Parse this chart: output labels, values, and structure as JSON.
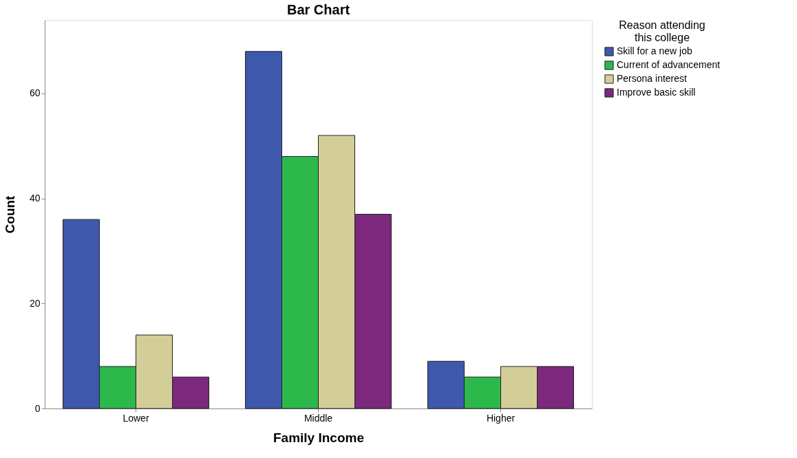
{
  "chart_data": {
    "type": "bar",
    "title": "Bar Chart",
    "xlabel": "Family Income",
    "ylabel": "Count",
    "legend_title": "Reason attending this college",
    "categories": [
      "Lower",
      "Middle",
      "Higher"
    ],
    "series": [
      {
        "name": "Skill for a new job",
        "color": "#3e58ac",
        "values": [
          36,
          68,
          9
        ]
      },
      {
        "name": "Current of advancement",
        "color": "#2db84b",
        "values": [
          8,
          48,
          6
        ]
      },
      {
        "name": "Persona interest",
        "color": "#d3ce97",
        "values": [
          14,
          52,
          8
        ]
      },
      {
        "name": "Improve basic skill",
        "color": "#7b287d",
        "values": [
          6,
          37,
          8
        ]
      }
    ],
    "ylim": [
      0,
      74
    ],
    "yticks": [
      0,
      20,
      40,
      60
    ],
    "grid": false,
    "legend": "top right"
  }
}
